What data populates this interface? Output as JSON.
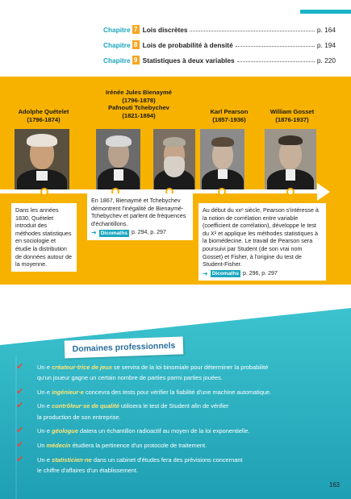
{
  "chapters": [
    {
      "word": "Chapitre",
      "num": "7",
      "title": "Lois discrètes",
      "page": "p. 164"
    },
    {
      "word": "Chapitre",
      "num": "8",
      "title": "Lois de probabilité à densité",
      "page": "p. 194"
    },
    {
      "word": "Chapitre",
      "num": "9",
      "title": "Statistiques à deux variables",
      "page": "p. 220"
    }
  ],
  "people": [
    {
      "name": "Adolphe Quételet",
      "years": "(1796-1874)"
    },
    {
      "name": "Irénée Jules Bienaymé",
      "years": "(1796-1878)",
      "name2": "Pafnouti Tchebychev",
      "years2": "(1821-1894)"
    },
    {
      "name": "Karl Pearson",
      "years": "(1857-1936)"
    },
    {
      "name": "William Gosset",
      "years": "(1876-1937)"
    }
  ],
  "cards": {
    "quetelet": "Dans les années 1830, Quételet introduit des méthodes statistiques en sociologie et étudie la distribution de données autour de la moyenne.",
    "bienayme": "En 1867, Bienaymé et Tchebychev démontrent l'inégalité de Bienaymé-Tchebychev et parlent de fréquences d'échantillons.",
    "bienayme_ref_tag": "Dicomaths",
    "bienayme_ref_pages": "p. 294, p. 297",
    "pearson": "Au début du xxᵉ siècle, Pearson s'intéresse à la notion de corrélation entre variable (coefficient de corrélation), développe le test du X² et applique les méthodes statistiques à la biomédecine. Le travail de Pearson sera poursuivi par Student (de son vrai nom Gosset) et Fisher, à l'origine du test de Student-Fisher.",
    "pearson_ref_tag": "Dicomaths",
    "pearson_ref_pages": "p. 296, p. 297"
  },
  "domains": {
    "title": "Domaines professionnels",
    "items": [
      {
        "pre": "Un·e ",
        "hl": "créateur·trice de jeux",
        "post": " se servira de la loi binomiale pour déterminer la probabilité",
        "line2": "qu'un joueur gagne un certain nombre  de parties parmi  parties jouées."
      },
      {
        "pre": "Un·e ",
        "hl": "ingénieur·e",
        "post": " concevra des tests pour vérifier la fiabilité d'une machine automatique.",
        "line2": ""
      },
      {
        "pre": "Un·e ",
        "hl": "contrôleur·se de qualité",
        "post": " utilisera le test de Student afin de vérifier",
        "line2": "la production de son entreprise."
      },
      {
        "pre": "Un·e  ",
        "hl": "géologue",
        "post": " datera un échantillon radioactif au moyen de la loi exponentielle.",
        "line2": ""
      },
      {
        "pre": "Un ",
        "hl": "médecin",
        "post": " étudiera la pertinence d'un protocole de traitement.",
        "line2": ""
      },
      {
        "pre": "Un·e  ",
        "hl": "statisticien·ne",
        "post": " dans un cabinet d'études fera des prévisions concernant",
        "line2": "le chiffre d'affaires d'un établissement."
      }
    ]
  },
  "page_number": "163",
  "colors": {
    "accent_teal": "#1aa6bf",
    "band_yellow": "#f7b200",
    "chapter_badge": "#f5a623",
    "check_red": "#e8473b",
    "highlight_yellow": "#fce57a"
  }
}
